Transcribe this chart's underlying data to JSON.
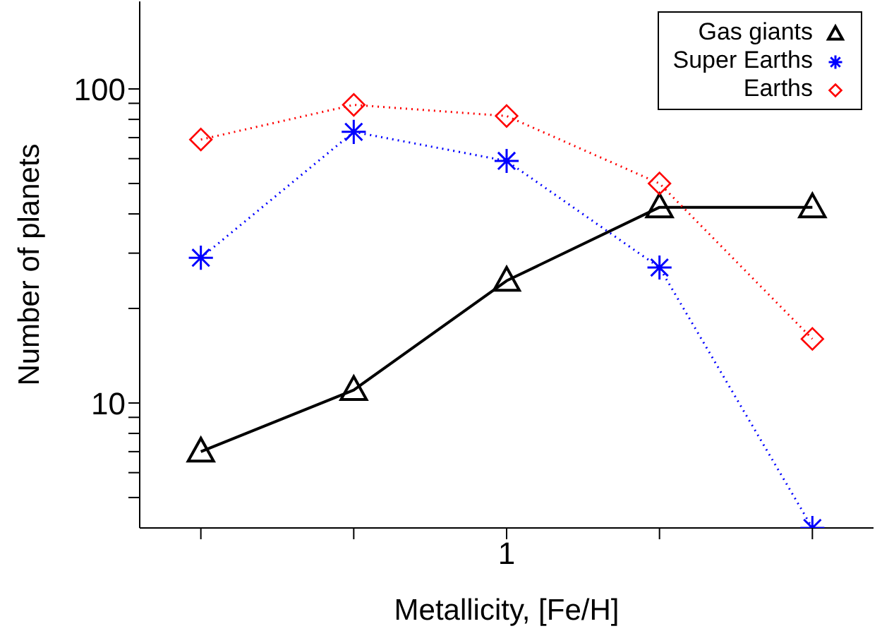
{
  "chart_data": {
    "type": "line",
    "xlabel": "Metallicity, [Fe/H]",
    "ylabel": "Number of planets",
    "categories": [
      null,
      null,
      "1",
      null,
      null
    ],
    "series": [
      {
        "name": "Gas giants",
        "color": "#000000",
        "marker": "triangle",
        "line_style": "solid",
        "values": [
          7,
          11,
          24.5,
          42,
          42
        ]
      },
      {
        "name": "Super Earths",
        "color": "#0000ff",
        "marker": "cross",
        "line_style": "dotted",
        "values": [
          29,
          73,
          59,
          27,
          4
        ]
      },
      {
        "name": "Earths",
        "color": "#ff0000",
        "marker": "diamond",
        "line_style": "dotted",
        "values": [
          69,
          89,
          82,
          50,
          16
        ]
      }
    ],
    "log": "y",
    "ylim": [
      4,
      190
    ],
    "yticks": [
      {
        "value": 5,
        "label": null
      },
      {
        "value": 6,
        "label": null
      },
      {
        "value": 7,
        "label": null
      },
      {
        "value": 8,
        "label": null
      },
      {
        "value": 9,
        "label": null
      },
      10,
      {
        "value": 20,
        "label": null
      },
      {
        "value": 30,
        "label": null
      },
      {
        "value": 40,
        "label": null
      },
      {
        "value": 50,
        "label": null
      },
      {
        "value": 60,
        "label": null
      },
      {
        "value": 70,
        "label": null
      },
      {
        "value": 80,
        "label": null
      },
      {
        "value": 90,
        "label": null
      },
      100
    ],
    "grid": false,
    "legend": "top right"
  }
}
